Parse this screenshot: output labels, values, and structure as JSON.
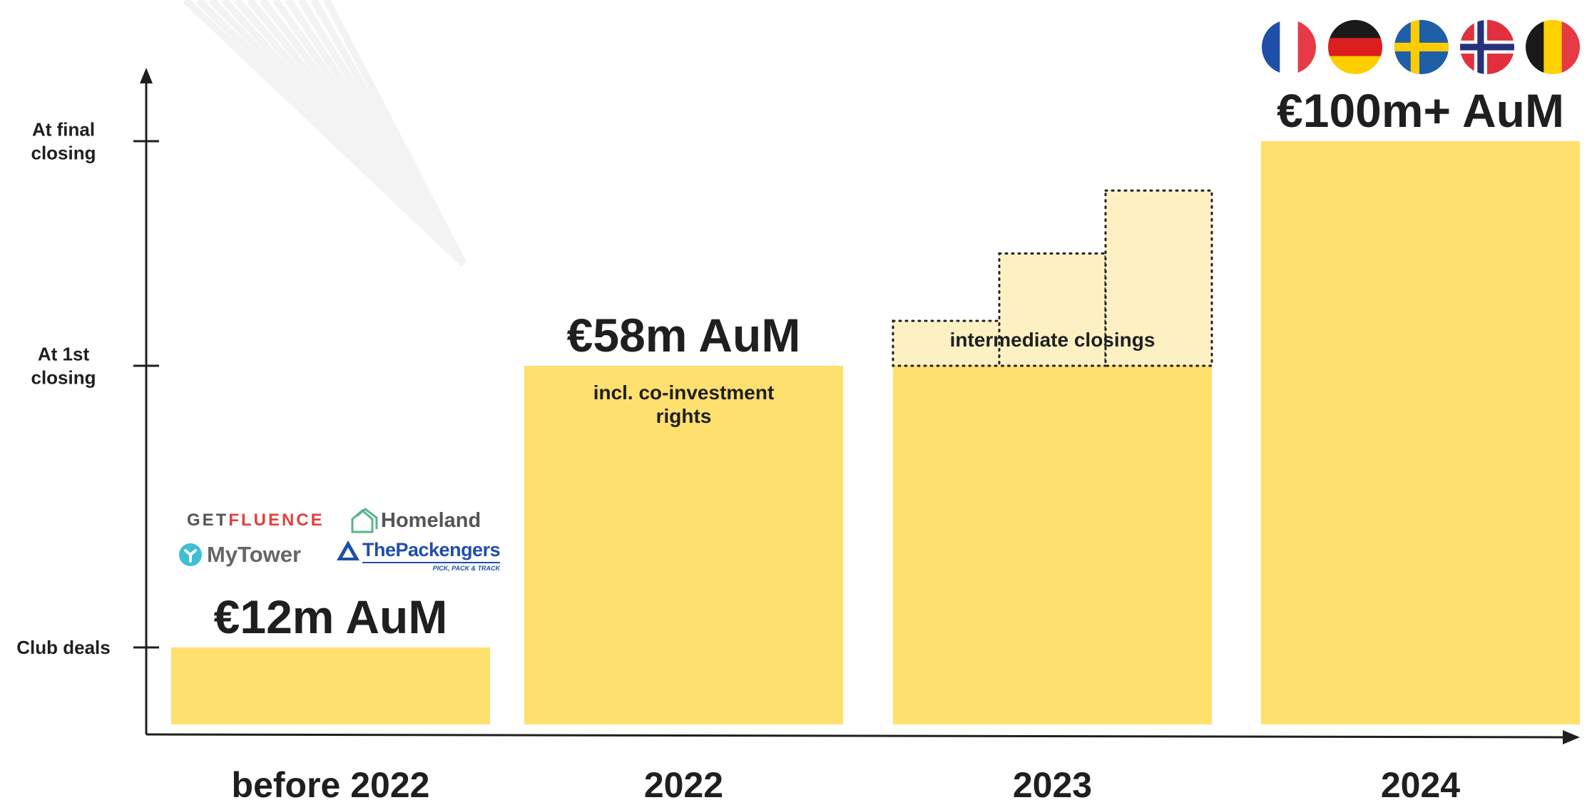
{
  "colors": {
    "bar": "#FDE06E",
    "bar_light": "#FDF1C3",
    "axis": "#1f1f1f",
    "text": "#1f1f1f"
  },
  "chart_data": {
    "type": "bar",
    "categories": [
      "before 2022",
      "2022",
      "2023",
      "2024"
    ],
    "y_levels": [
      "Club deals",
      "At 1st closing",
      "At final closing"
    ],
    "y_ticks": [
      {
        "label_lines": [
          "Club deals"
        ],
        "level": 1
      },
      {
        "label_lines": [
          "At 1st",
          "closing"
        ],
        "level": 2
      },
      {
        "label_lines": [
          "At final",
          "closing"
        ],
        "level": 3
      }
    ],
    "bars": [
      {
        "category": "before 2022",
        "level": 1,
        "aum": "€12m AuM",
        "note_lines": []
      },
      {
        "category": "2022",
        "level": 2,
        "aum": "€58m AuM",
        "note_lines": [
          "incl. co-investment",
          "rights"
        ]
      },
      {
        "category": "2023",
        "level": 2,
        "aum": "",
        "note_lines": []
      },
      {
        "category": "2024",
        "level": 3,
        "aum": "€100m+ AuM",
        "note_lines": []
      }
    ],
    "intermediate": {
      "category": "2023",
      "label": "intermediate closings",
      "steps": [
        2.2,
        2.5,
        2.78
      ]
    },
    "grid": false,
    "legend": "none"
  },
  "logos": [
    {
      "name": "getfluence",
      "prefix": "GET",
      "suffix": "FLUENCE"
    },
    {
      "name": "homeland",
      "text": "Homeland"
    },
    {
      "name": "mytower",
      "text": "MyTower"
    },
    {
      "name": "thepackengers",
      "text": "ThePackengers",
      "tagline": "PICK, PACK & TRACK"
    }
  ],
  "flags": [
    {
      "country": "France",
      "colors": [
        "#1F4FA8",
        "#FFFFFF",
        "#E63B46"
      ],
      "layout": "vertical"
    },
    {
      "country": "Germany",
      "colors": [
        "#1A1A1A",
        "#DD1E1E",
        "#FFCE00"
      ],
      "layout": "horizontal"
    },
    {
      "country": "Sweden",
      "colors": [
        "#1F5FA8",
        "#FECC02"
      ],
      "layout": "nordic"
    },
    {
      "country": "Norway",
      "colors": [
        "#E0303E",
        "#FFFFFF",
        "#23327A"
      ],
      "layout": "nordic-bordered"
    },
    {
      "country": "Belgium",
      "colors": [
        "#1A1A1A",
        "#FFD100",
        "#E63B46"
      ],
      "layout": "vertical"
    }
  ]
}
